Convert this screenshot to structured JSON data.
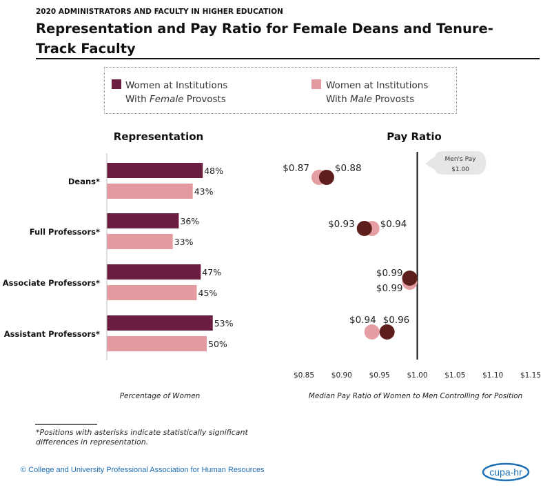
{
  "kicker": "2020 ADMINISTRATORS AND FACULTY IN HIGHER EDUCATION",
  "title": "Representation and Pay Ratio for Female Deans and Tenure-Track Faculty",
  "legend": {
    "female_line1": "Women at Institutions",
    "female_line2_pre": "With ",
    "female_line2_em": "Female",
    "female_line2_post": " Provosts",
    "male_line1": "Women at Institutions",
    "male_line2_pre": "With ",
    "male_line2_em": "Male",
    "male_line2_post": " Provosts"
  },
  "colors": {
    "female_provost_bar": "#6b1d40",
    "male_provost_bar": "#e39aa0",
    "female_provost_dot": "#5c1f1b",
    "male_provost_dot": "#e59ea4"
  },
  "chart_data": [
    {
      "type": "bar",
      "orientation": "horizontal",
      "title": "Representation",
      "xlabel": "Percentage of  Women",
      "categories": [
        "Deans*",
        "Full Professors*",
        "Associate Professors*",
        "Assistant Professors*"
      ],
      "series": [
        {
          "name": "Women at Institutions With Female Provosts",
          "values": [
            48,
            36,
            47,
            53
          ],
          "labels": [
            "48%",
            "36%",
            "47%",
            "53%"
          ]
        },
        {
          "name": "Women at Institutions With Male Provosts",
          "values": [
            43,
            33,
            45,
            50
          ],
          "labels": [
            "43%",
            "33%",
            "45%",
            "50%"
          ]
        }
      ]
    },
    {
      "type": "scatter",
      "title": "Pay Ratio",
      "xlabel": "Median Pay Ratio of Women to Men Controlling for Position",
      "categories": [
        "Deans*",
        "Full Professors*",
        "Associate Professors*",
        "Assistant Professors*"
      ],
      "xlim": [
        0.85,
        1.15
      ],
      "xticks": [
        "$0.85",
        "$0.90",
        "$0.95",
        "$1.00",
        "$1.05",
        "$1.10",
        "$1.15"
      ],
      "series": [
        {
          "name": "Women at Institutions With Female Provosts",
          "values": [
            0.88,
            0.93,
            0.99,
            0.96
          ],
          "labels": [
            "$0.88",
            "$0.93",
            "$0.99",
            "$0.96"
          ]
        },
        {
          "name": "Women at Institutions With Male Provosts",
          "values": [
            0.87,
            0.94,
            0.99,
            0.94
          ],
          "labels": [
            "$0.87",
            "$0.94",
            "$0.99",
            "$0.94"
          ]
        }
      ],
      "reference": {
        "value": 1.0,
        "callout_line1": "Men's Pay",
        "callout_line2": "$1.00"
      }
    }
  ],
  "footnote": "*Positions with asterisks indicate statistically significant differences in representation.",
  "copyright": "© College and University Professional Association for Human Resources",
  "logo_text": "cupa-hr"
}
